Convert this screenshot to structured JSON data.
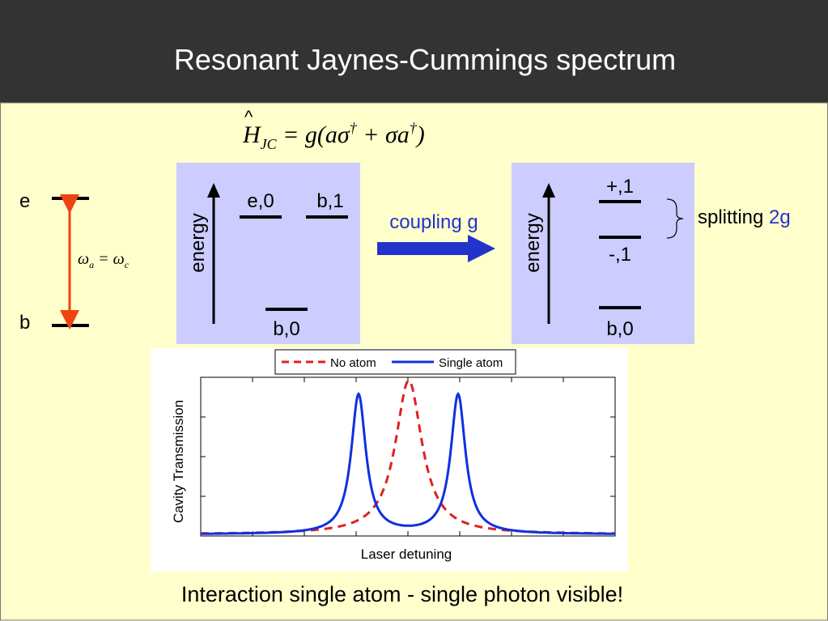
{
  "header": {
    "title": "Resonant Jaynes-Cummings spectrum"
  },
  "equation": {
    "parts": [
      "H",
      "JC",
      " = g(",
      "aσ",
      "†",
      " + ",
      "σa",
      "†",
      ")"
    ]
  },
  "atom": {
    "upper": "e",
    "lower": "b",
    "resonance": [
      "ω",
      "a",
      " = ω",
      "c"
    ]
  },
  "uncoupled": {
    "axis_label": "energy",
    "levels": [
      "e,0",
      "b,1",
      "b,0"
    ]
  },
  "arrow_label": "coupling g",
  "coupled": {
    "axis_label": "energy",
    "levels": [
      "+,1",
      "-,1",
      "b,0"
    ]
  },
  "splitting": {
    "text": "splitting",
    "value": "2g"
  },
  "plot": {
    "legend": [
      "No atom",
      "Single atom"
    ],
    "y_label": "Cavity Transmission",
    "x_label": "Laser detuning"
  },
  "caption": "Interaction single atom - single photon visible!"
}
